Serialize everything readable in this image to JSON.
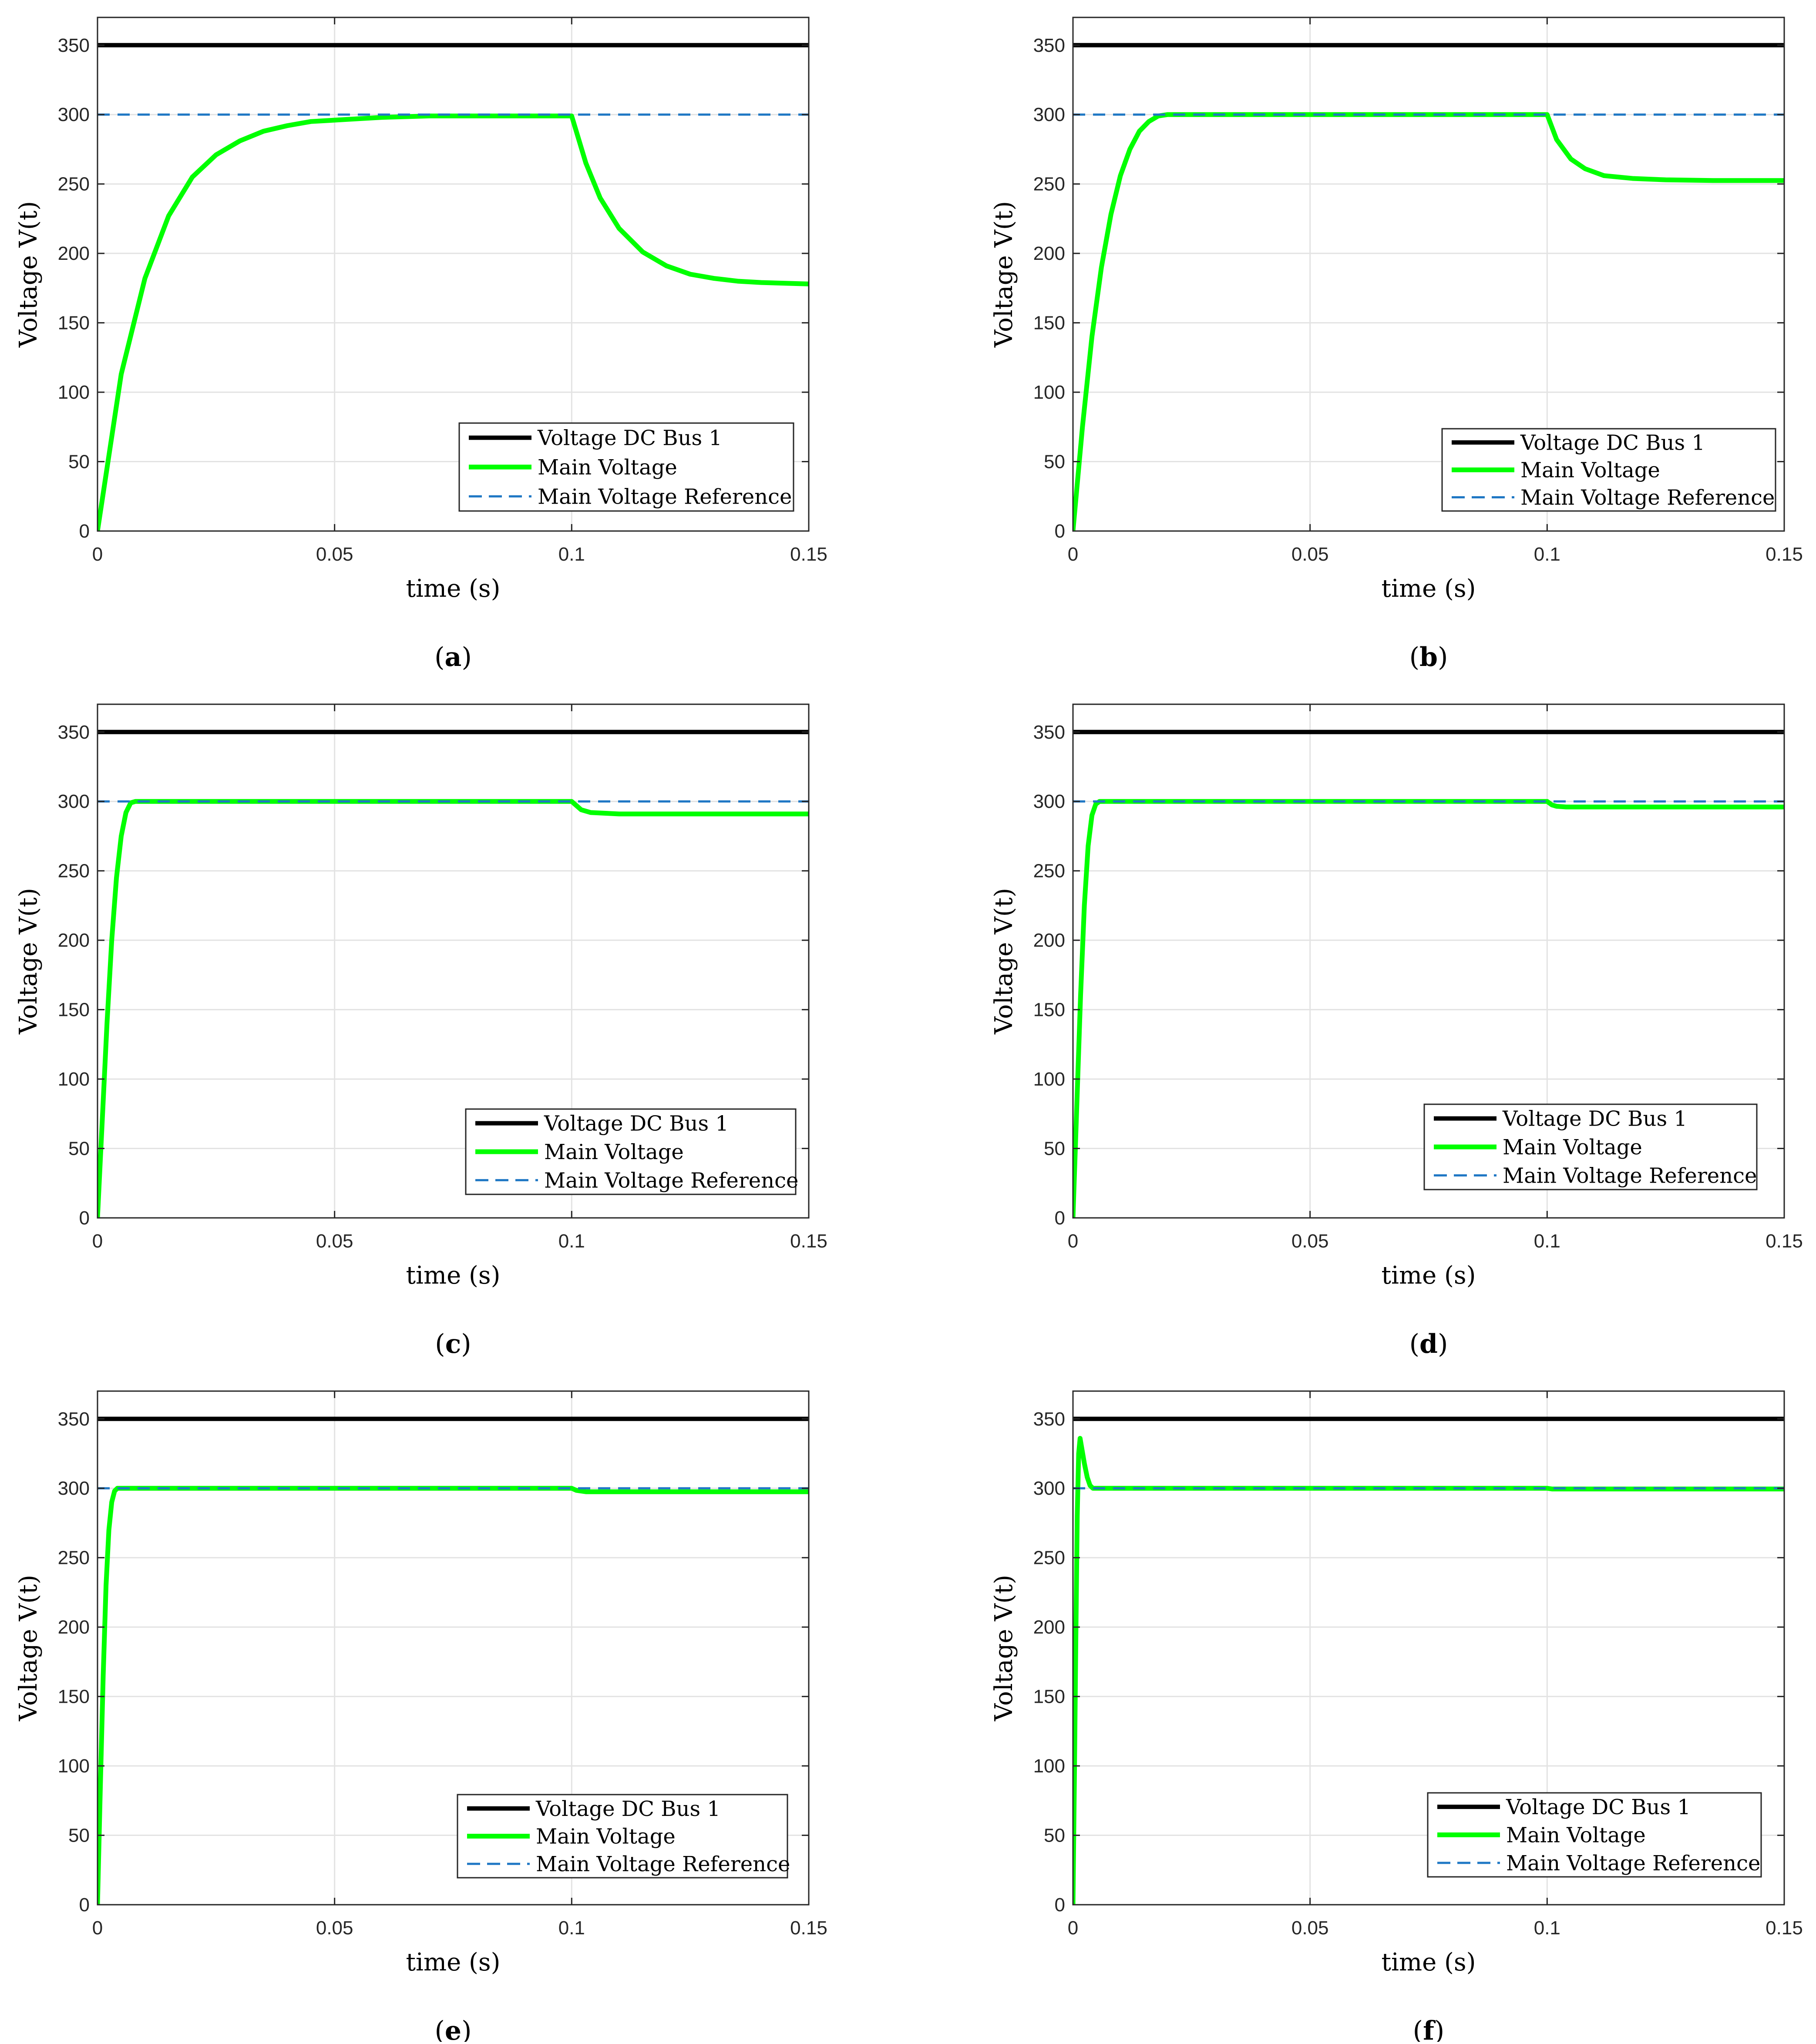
{
  "colors": {
    "bus": "#000000",
    "main": "#00ff00",
    "reference": "#1f77c4",
    "grid": "#e3e3e3",
    "axis": "#262626"
  },
  "chart_data": [
    {
      "type": "line",
      "caption_letter": "a",
      "xlabel": "time (s)",
      "ylabel": "Voltage V(t)",
      "xlim": [
        0,
        0.15
      ],
      "ylim": [
        0,
        370
      ],
      "xticks": [
        0,
        0.05,
        0.1,
        0.15
      ],
      "xtick_labels": [
        "0",
        "0.05",
        "0.1",
        "0.15"
      ],
      "yticks": [
        0,
        50,
        100,
        150,
        200,
        250,
        300,
        350
      ],
      "ytick_labels": [
        "0",
        "50",
        "100",
        "150",
        "200",
        "250",
        "300",
        "350"
      ],
      "grid": true,
      "legend_position": "bottom-right",
      "series": [
        {
          "name": "Voltage DC Bus 1",
          "style": "solid-thick",
          "x": [
            0,
            0.15
          ],
          "y": [
            350,
            350
          ]
        },
        {
          "name": "Main Voltage",
          "style": "solid-thick",
          "x": [
            0,
            0.005,
            0.01,
            0.015,
            0.02,
            0.025,
            0.03,
            0.035,
            0.04,
            0.045,
            0.05,
            0.055,
            0.06,
            0.065,
            0.07,
            0.075,
            0.08,
            0.085,
            0.09,
            0.095,
            0.1,
            0.103,
            0.106,
            0.11,
            0.115,
            0.12,
            0.125,
            0.13,
            0.135,
            0.14,
            0.145,
            0.15
          ],
          "y": [
            0,
            113,
            182,
            227,
            255,
            271,
            281,
            288,
            292,
            295,
            296,
            297,
            298,
            298.5,
            299,
            299,
            299,
            299,
            299,
            299,
            299,
            265,
            240,
            218,
            201,
            191,
            185,
            182,
            180,
            179,
            178.5,
            178
          ]
        },
        {
          "name": "Main Voltage Reference",
          "style": "dashed",
          "x": [
            0,
            0.15
          ],
          "y": [
            300,
            300
          ]
        }
      ]
    },
    {
      "type": "line",
      "caption_letter": "b",
      "xlabel": "time (s)",
      "ylabel": "Voltage V(t)",
      "xlim": [
        0,
        0.15
      ],
      "ylim": [
        0,
        370
      ],
      "xticks": [
        0,
        0.05,
        0.1,
        0.15
      ],
      "xtick_labels": [
        "0",
        "0.05",
        "0.1",
        "0.15"
      ],
      "yticks": [
        0,
        50,
        100,
        150,
        200,
        250,
        300,
        350
      ],
      "ytick_labels": [
        "0",
        "50",
        "100",
        "150",
        "200",
        "250",
        "300",
        "350"
      ],
      "grid": true,
      "legend_position": "bottom-right",
      "series": [
        {
          "name": "Voltage DC Bus 1",
          "style": "solid-thick",
          "x": [
            0,
            0.15
          ],
          "y": [
            350,
            350
          ]
        },
        {
          "name": "Main Voltage",
          "style": "solid-thick",
          "x": [
            0,
            0.002,
            0.004,
            0.006,
            0.008,
            0.01,
            0.012,
            0.014,
            0.016,
            0.018,
            0.02,
            0.025,
            0.1,
            0.102,
            0.105,
            0.108,
            0.112,
            0.118,
            0.125,
            0.135,
            0.15
          ],
          "y": [
            0,
            75,
            140,
            190,
            228,
            256,
            275,
            288,
            295,
            299,
            300,
            300,
            300,
            282,
            268,
            261,
            256,
            254,
            253,
            252.5,
            252.5
          ]
        },
        {
          "name": "Main Voltage Reference",
          "style": "dashed",
          "x": [
            0,
            0.15
          ],
          "y": [
            300,
            300
          ]
        }
      ]
    },
    {
      "type": "line",
      "caption_letter": "c",
      "xlabel": "time (s)",
      "ylabel": "Voltage V(t)",
      "xlim": [
        0,
        0.15
      ],
      "ylim": [
        0,
        370
      ],
      "xticks": [
        0,
        0.05,
        0.1,
        0.15
      ],
      "xtick_labels": [
        "0",
        "0.05",
        "0.1",
        "0.15"
      ],
      "yticks": [
        0,
        50,
        100,
        150,
        200,
        250,
        300,
        350
      ],
      "ytick_labels": [
        "0",
        "50",
        "100",
        "150",
        "200",
        "250",
        "300",
        "350"
      ],
      "grid": true,
      "legend_position": "bottom-right",
      "series": [
        {
          "name": "Voltage DC Bus 1",
          "style": "solid-thick",
          "x": [
            0,
            0.15
          ],
          "y": [
            350,
            350
          ]
        },
        {
          "name": "Main Voltage",
          "style": "solid-thick",
          "x": [
            0,
            0.001,
            0.002,
            0.003,
            0.004,
            0.005,
            0.006,
            0.007,
            0.008,
            0.1,
            0.101,
            0.102,
            0.104,
            0.107,
            0.11,
            0.15
          ],
          "y": [
            0,
            70,
            140,
            200,
            245,
            275,
            292,
            299,
            300,
            300,
            297,
            294,
            292,
            291.5,
            291,
            291
          ]
        },
        {
          "name": "Main Voltage Reference",
          "style": "dashed",
          "x": [
            0,
            0.15
          ],
          "y": [
            300,
            300
          ]
        }
      ]
    },
    {
      "type": "line",
      "caption_letter": "d",
      "xlabel": "time (s)",
      "ylabel": "Voltage V(t)",
      "xlim": [
        0,
        0.15
      ],
      "ylim": [
        0,
        370
      ],
      "xticks": [
        0,
        0.05,
        0.1,
        0.15
      ],
      "xtick_labels": [
        "0",
        "0.05",
        "0.1",
        "0.15"
      ],
      "yticks": [
        0,
        50,
        100,
        150,
        200,
        250,
        300,
        350
      ],
      "ytick_labels": [
        "0",
        "50",
        "100",
        "150",
        "200",
        "250",
        "300",
        "350"
      ],
      "grid": true,
      "legend_position": "bottom-right",
      "series": [
        {
          "name": "Voltage DC Bus 1",
          "style": "solid-thick",
          "x": [
            0,
            0.15
          ],
          "y": [
            350,
            350
          ]
        },
        {
          "name": "Main Voltage",
          "style": "solid-thick",
          "x": [
            0,
            0.0008,
            0.0016,
            0.0024,
            0.0032,
            0.004,
            0.0048,
            0.0056,
            0.1,
            0.101,
            0.102,
            0.104,
            0.15
          ],
          "y": [
            0,
            80,
            160,
            225,
            268,
            290,
            298,
            300,
            300,
            297.5,
            296.5,
            296,
            296
          ]
        },
        {
          "name": "Main Voltage Reference",
          "style": "dashed",
          "x": [
            0,
            0.15
          ],
          "y": [
            300,
            300
          ]
        }
      ]
    },
    {
      "type": "line",
      "caption_letter": "e",
      "xlabel": "time (s)",
      "ylabel": "Voltage V(t)",
      "xlim": [
        0,
        0.15
      ],
      "ylim": [
        0,
        370
      ],
      "xticks": [
        0,
        0.05,
        0.1,
        0.15
      ],
      "xtick_labels": [
        "0",
        "0.05",
        "0.1",
        "0.15"
      ],
      "yticks": [
        0,
        50,
        100,
        150,
        200,
        250,
        300,
        350
      ],
      "ytick_labels": [
        "0",
        "50",
        "100",
        "150",
        "200",
        "250",
        "300",
        "350"
      ],
      "grid": true,
      "legend_position": "bottom-right",
      "series": [
        {
          "name": "Voltage DC Bus 1",
          "style": "solid-thick",
          "x": [
            0,
            0.15
          ],
          "y": [
            350,
            350
          ]
        },
        {
          "name": "Main Voltage",
          "style": "solid-thick",
          "x": [
            0,
            0.0006,
            0.0012,
            0.0018,
            0.0024,
            0.003,
            0.0036,
            0.0042,
            0.1,
            0.101,
            0.103,
            0.15
          ],
          "y": [
            0,
            85,
            165,
            230,
            270,
            290,
            298,
            300,
            300,
            298.5,
            297.5,
            297.5
          ]
        },
        {
          "name": "Main Voltage Reference",
          "style": "dashed",
          "x": [
            0,
            0.15
          ],
          "y": [
            300,
            300
          ]
        }
      ]
    },
    {
      "type": "line",
      "caption_letter": "f",
      "xlabel": "time (s)",
      "ylabel": "Voltage V(t)",
      "xlim": [
        0,
        0.15
      ],
      "ylim": [
        0,
        370
      ],
      "xticks": [
        0,
        0.05,
        0.1,
        0.15
      ],
      "xtick_labels": [
        "0",
        "0.05",
        "0.1",
        "0.15"
      ],
      "yticks": [
        0,
        50,
        100,
        150,
        200,
        250,
        300,
        350
      ],
      "ytick_labels": [
        "0",
        "50",
        "100",
        "150",
        "200",
        "250",
        "300",
        "350"
      ],
      "grid": true,
      "legend_position": "bottom-right",
      "series": [
        {
          "name": "Voltage DC Bus 1",
          "style": "solid-thick",
          "x": [
            0,
            0.15
          ],
          "y": [
            350,
            350
          ]
        },
        {
          "name": "Main Voltage",
          "style": "solid-thick",
          "x": [
            0,
            0.0003,
            0.0006,
            0.0009,
            0.0012,
            0.0015,
            0.0018,
            0.0024,
            0.003,
            0.0036,
            0.0042,
            0.1,
            0.101,
            0.15
          ],
          "y": [
            0,
            90,
            190,
            280,
            325,
            336,
            330,
            318,
            308,
            302,
            300,
            300,
            299.5,
            299.5
          ]
        },
        {
          "name": "Main Voltage Reference",
          "style": "dashed",
          "x": [
            0,
            0.15
          ],
          "y": [
            300,
            300
          ]
        }
      ]
    }
  ]
}
